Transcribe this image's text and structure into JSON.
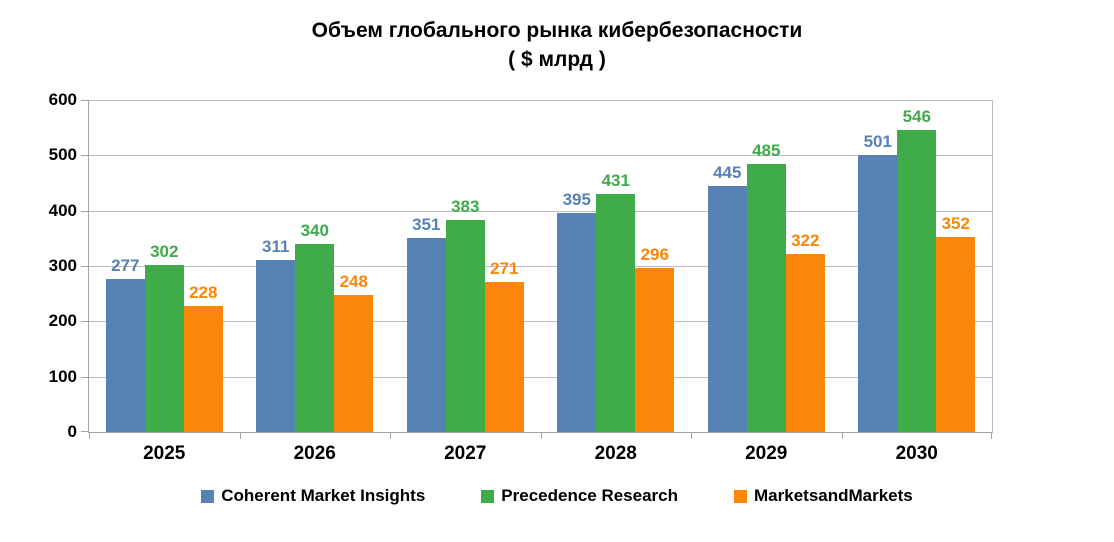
{
  "chart_data": {
    "type": "bar",
    "title": "Объем глобального рынка кибербезопасности",
    "subtitle": "( $ млрд )",
    "categories": [
      "2025",
      "2026",
      "2027",
      "2028",
      "2029",
      "2030"
    ],
    "series": [
      {
        "name": "Coherent Market Insights",
        "color": "#5882b4",
        "values": [
          277,
          311,
          351,
          395,
          445,
          501
        ]
      },
      {
        "name": "Precedence Research",
        "color": "#3fab49",
        "values": [
          302,
          340,
          383,
          431,
          485,
          546
        ]
      },
      {
        "name": "MarketsandMarkets",
        "color": "#fb8609",
        "values": [
          228,
          248,
          271,
          296,
          322,
          352
        ]
      }
    ],
    "ylim": [
      0,
      600
    ],
    "ytick_step": 100,
    "grid": true,
    "legend_position": "bottom",
    "value_labels": true
  },
  "colors": {
    "grid": "#bcbcbc",
    "axis": "#a3a3a3",
    "text": "#000000",
    "background": "#ffffff"
  }
}
